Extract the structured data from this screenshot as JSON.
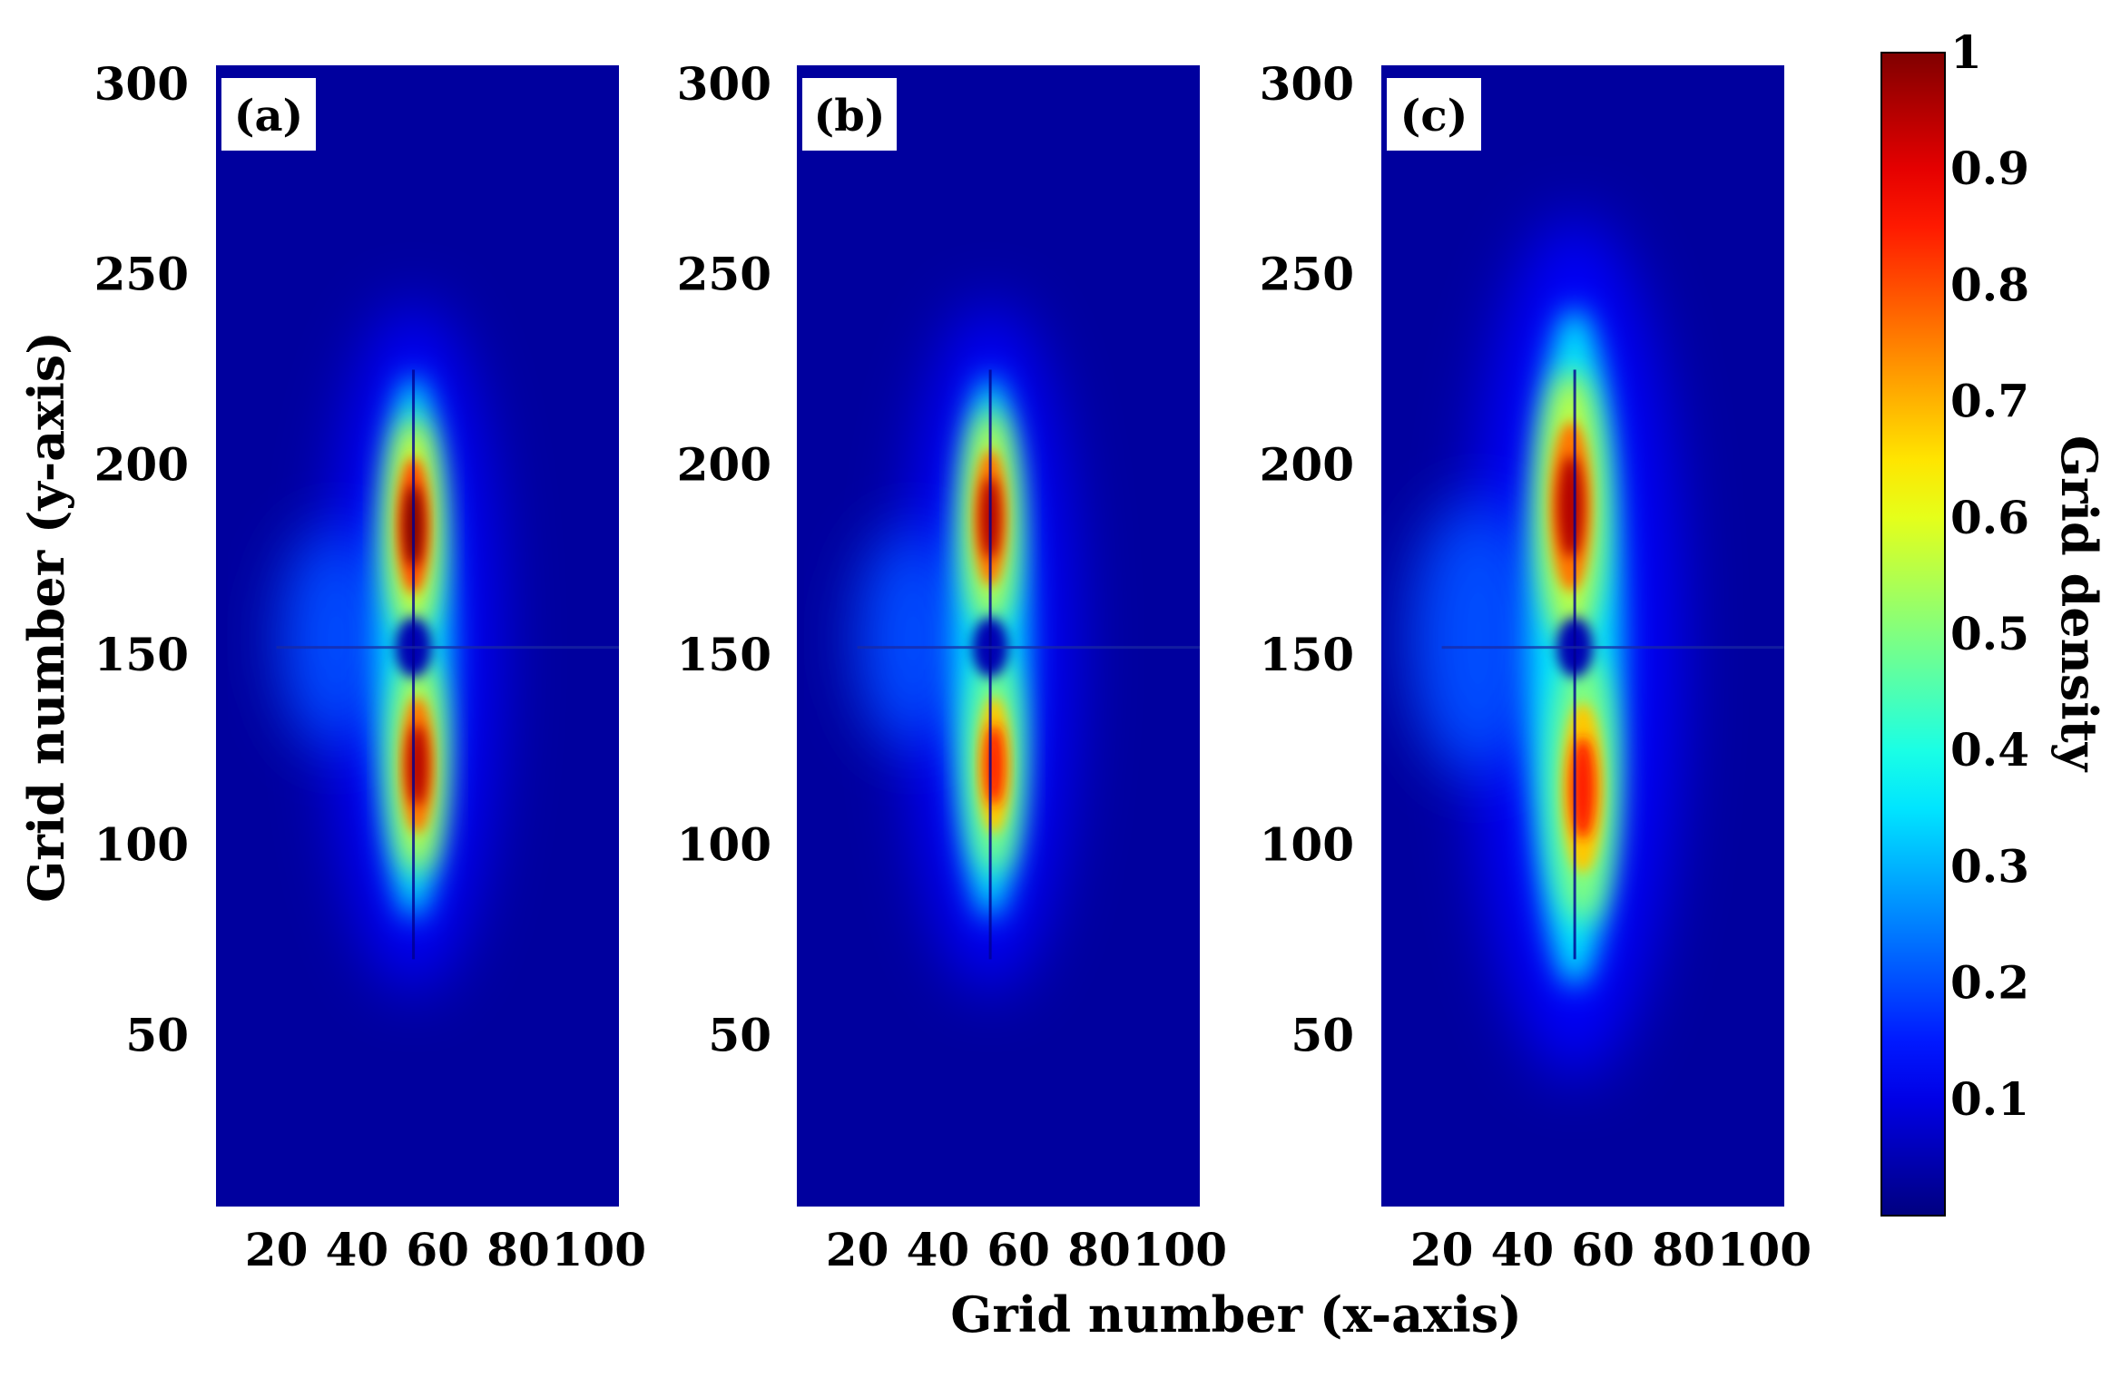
{
  "chart_data": {
    "type": "heatmap",
    "panels": [
      {
        "label": "(a)",
        "xlim": [
          5,
          105
        ],
        "ylim": [
          5,
          305
        ],
        "center": [
          54,
          152
        ],
        "peaks": [
          {
            "x": 54,
            "y": 184,
            "value": 1.0
          },
          {
            "x": 55,
            "y": 121,
            "value": 0.95
          }
        ],
        "hole_value": 0.05,
        "max_density": 1.0
      },
      {
        "label": "(b)",
        "xlim": [
          5,
          105
        ],
        "ylim": [
          5,
          305
        ],
        "center": [
          53,
          152
        ],
        "peaks": [
          {
            "x": 53,
            "y": 186,
            "value": 0.95
          },
          {
            "x": 54,
            "y": 121,
            "value": 0.85
          }
        ],
        "hole_value": 0.05,
        "max_density": 0.95
      },
      {
        "label": "(c)",
        "xlim": [
          5,
          105
        ],
        "ylim": [
          5,
          305
        ],
        "center": [
          53,
          152
        ],
        "peaks": [
          {
            "x": 52,
            "y": 189,
            "value": 0.95
          },
          {
            "x": 55,
            "y": 115,
            "value": 0.85
          }
        ],
        "hole_value": 0.05,
        "max_density": 0.95
      }
    ],
    "x_ticks": [
      20,
      40,
      60,
      80,
      100
    ],
    "y_ticks": [
      50,
      100,
      150,
      200,
      250,
      300
    ],
    "xlabel": "Grid number (x-axis)",
    "ylabel": "Grid number (y-axis)",
    "colorbar": {
      "label": "Grid density",
      "range": [
        0,
        1
      ],
      "ticks": [
        {
          "value": 0.1,
          "label": "0.1"
        },
        {
          "value": 0.2,
          "label": "0.2"
        },
        {
          "value": 0.3,
          "label": "0.3"
        },
        {
          "value": 0.4,
          "label": "0.4"
        },
        {
          "value": 0.5,
          "label": "0.5"
        },
        {
          "value": 0.6,
          "label": "0.6"
        },
        {
          "value": 0.7,
          "label": "0.7"
        },
        {
          "value": 0.8,
          "label": "0.8"
        },
        {
          "value": 0.9,
          "label": "0.9"
        },
        {
          "value": 1.0,
          "label": "1"
        }
      ],
      "colormap": "jet"
    }
  }
}
